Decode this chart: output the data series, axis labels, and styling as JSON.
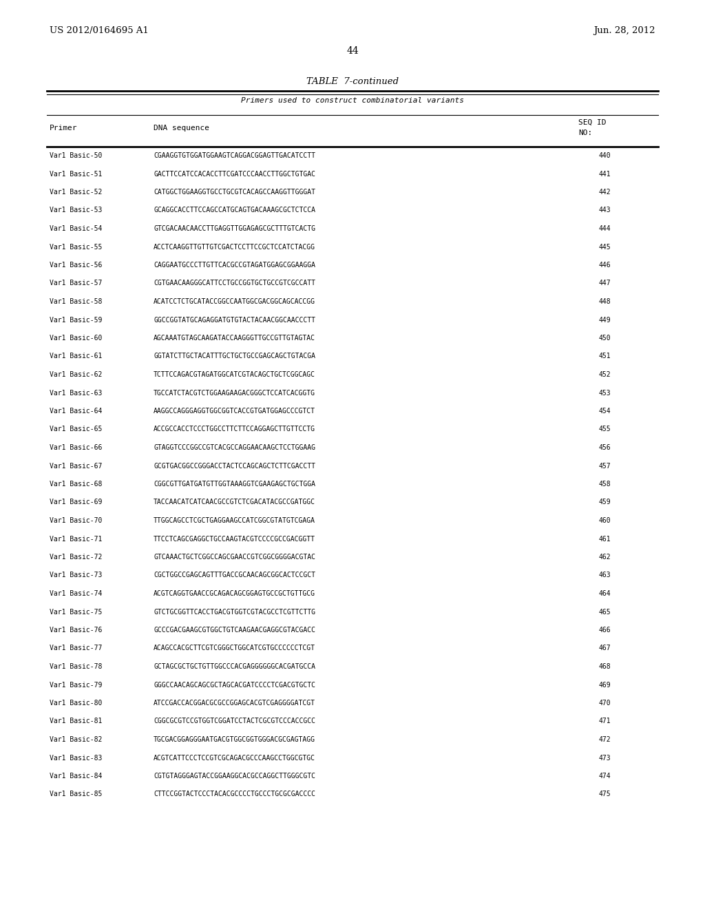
{
  "header_left": "US 2012/0164695 A1",
  "header_right": "Jun. 28, 2012",
  "page_number": "44",
  "table_title": "TABLE  7-continued",
  "table_subtitle": "Primers used to construct combinatorial variants",
  "rows": [
    [
      "Var1 Basic-50",
      "CGAAGGTGTGGATGGAAGTCAGGACGGAGTTGACATCCTT",
      "440"
    ],
    [
      "Var1 Basic-51",
      "GACTTCCATCCACACCTTCGATCCCAACCTTGGCTGTGAC",
      "441"
    ],
    [
      "Var1 Basic-52",
      "CATGGCTGGAAGGTGCCTGCGTCACAGCCAAGGTTGGGAT",
      "442"
    ],
    [
      "Var1 Basic-53",
      "GCAGGCACCTTCCAGCCATGCAGTGACAAAGCGCTCTCCA",
      "443"
    ],
    [
      "Var1 Basic-54",
      "GTCGACAACAACCTTGAGGTTGGAGAGCGCTTTGTCACTG",
      "444"
    ],
    [
      "Var1 Basic-55",
      "ACCTCAAGGTTGTTGTCGACTCCTTCCGCTCCATCTACGG",
      "445"
    ],
    [
      "Var1 Basic-56",
      "CAGGAATGCCCTTGTTCACGCCGTAGATGGAGCGGAAGGA",
      "446"
    ],
    [
      "Var1 Basic-57",
      "CGTGAACAAGGGCATTCCTGCCGGTGCTGCCGTCGCCATT",
      "447"
    ],
    [
      "Var1 Basic-58",
      "ACATCCTCTGCATACCGGCCAATGGCGACGGCAGCACCGG",
      "448"
    ],
    [
      "Var1 Basic-59",
      "GGCCGGTATGCAGAGGATGTGTACTACAACGGCAACCCTT",
      "449"
    ],
    [
      "Var1 Basic-60",
      "AGCAAATGTAGCAAGATACCAAGGGTTGCCGTTGTAGTAC",
      "450"
    ],
    [
      "Var1 Basic-61",
      "GGTATCTTGCTACATTTGCTGCTGCCGAGCAGCTGTACGA",
      "451"
    ],
    [
      "Var1 Basic-62",
      "TCTTCCAGACGTAGATGGCATCGTACAGCTGCTCGGCAGC",
      "452"
    ],
    [
      "Var1 Basic-63",
      "TGCCATCTACGTCTGGAAGAAGACGGGCTCCATCACGGTG",
      "453"
    ],
    [
      "Var1 Basic-64",
      "AAGGCCAGGGAGGTGGCGGTCACCGTGATGGAGCCCGTCT",
      "454"
    ],
    [
      "Var1 Basic-65",
      "ACCGCCACCTCCCTGGCCTTCTTCCAGGAGCTTGTTCCTG",
      "455"
    ],
    [
      "Var1 Basic-66",
      "GTAGGTCCCGGCCGTCACGCCAGGAACAAGCTCCTGGAAG",
      "456"
    ],
    [
      "Var1 Basic-67",
      "GCGTGACGGCCGGGACCTACTCCAGCAGCTCTTCGACCTT",
      "457"
    ],
    [
      "Var1 Basic-68",
      "CGGCGTTGATGATGTTGGTAAAGGTCGAAGAGCTGCTGGA",
      "458"
    ],
    [
      "Var1 Basic-69",
      "TACCAACATCATCAACGCCGTCTCGACATACGCCGATGGC",
      "459"
    ],
    [
      "Var1 Basic-70",
      "TTGGCAGCCTCGCTGAGGAAGCCATCGGCGTATGTCGAGA",
      "460"
    ],
    [
      "Var1 Basic-71",
      "TTCCTCAGCGAGGCTGCCAAGTACGTCCCCGCCGACGGTT",
      "461"
    ],
    [
      "Var1 Basic-72",
      "GTCAAACTGCTCGGCCAGCGAACCGTCGGCGGGGACGTAC",
      "462"
    ],
    [
      "Var1 Basic-73",
      "CGCTGGCCGAGCAGTTTGACCGCAACAGCGGCACTCCGCT",
      "463"
    ],
    [
      "Var1 Basic-74",
      "ACGTCAGGTGAACCGCAGACAGCGGAGTGCCGCTGTTGCG",
      "464"
    ],
    [
      "Var1 Basic-75",
      "GTCTGCGGTTCACCTGACGTGGTCGTACGCCTCGTTCTTG",
      "465"
    ],
    [
      "Var1 Basic-76",
      "GCCCGACGAAGCGTGGCTGTCAAGAACGAGGCGTACGACC",
      "466"
    ],
    [
      "Var1 Basic-77",
      "ACAGCCACGCTTCGTCGGGCTGGCATCGTGCCCCCCTCGT",
      "467"
    ],
    [
      "Var1 Basic-78",
      "GCTAGCGCTGCTGTTGGCCCACGAGGGGGGCACGATGCCA",
      "468"
    ],
    [
      "Var1 Basic-79",
      "GGGCCAACAGCAGCGCTAGCACGATCCCCTCGACGTGCTC",
      "469"
    ],
    [
      "Var1 Basic-80",
      "ATCCGACCACGGACGCGCCGGAGCACGTCGAGGGGATCGT",
      "470"
    ],
    [
      "Var1 Basic-81",
      "CGGCGCGTCCGTGGTCGGATCCTACTCGCGTCCCACCGCC",
      "471"
    ],
    [
      "Var1 Basic-82",
      "TGCGACGGAGGGAATGACGTGGCGGTGGGACGCGAGTAGG",
      "472"
    ],
    [
      "Var1 Basic-83",
      "ACGTCATTCCCTCCGTCGCAGACGCCCAAGCCTGGCGTGC",
      "473"
    ],
    [
      "Var1 Basic-84",
      "CGTGTAGGGAGTACCGGAAGGCACGCCAGGCTTGGGCGTC",
      "474"
    ],
    [
      "Var1 Basic-85",
      "CTTCCGGTACTCCCTACACGCCCCTGCCCTGCGCGACCCC",
      "475"
    ]
  ],
  "bg_color": "#ffffff",
  "text_color": "#000000"
}
